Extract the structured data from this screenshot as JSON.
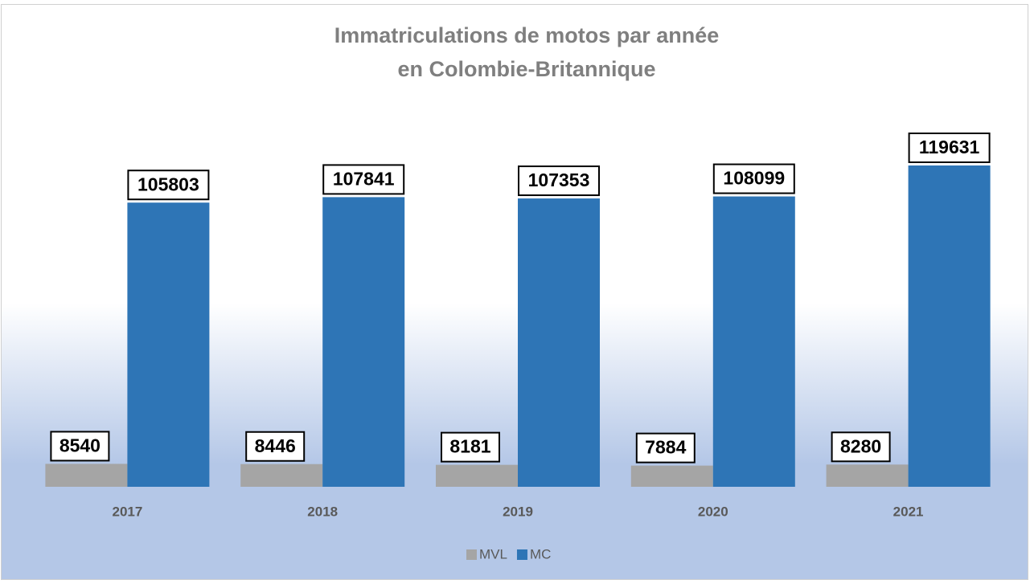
{
  "chart_data": {
    "type": "bar",
    "title": [
      "Immatriculations de motos par année",
      "en Colombie-Britannique"
    ],
    "categories": [
      "2017",
      "2018",
      "2019",
      "2020",
      "2021"
    ],
    "series": [
      {
        "name": "MVL",
        "color": "#a5a5a5",
        "values": [
          8540,
          8446,
          8181,
          7884,
          8280
        ]
      },
      {
        "name": "MC",
        "color": "#2e75b6",
        "values": [
          105803,
          107841,
          107353,
          108099,
          119631
        ]
      }
    ],
    "legend": "bottom"
  }
}
